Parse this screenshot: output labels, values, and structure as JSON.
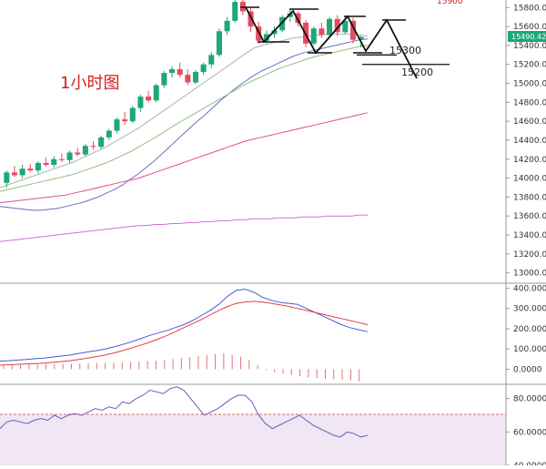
{
  "chart_data": [
    {
      "type": "candlestick",
      "panel": "price",
      "timeframe_label": "1小时图",
      "current_price_label": "15490.42",
      "y_ticks": [
        13000,
        13200,
        13400,
        13600,
        13800,
        14000,
        14200,
        14400,
        14600,
        14800,
        15000,
        15200,
        15400,
        15600,
        15800
      ],
      "ylim": [
        12900,
        15880
      ],
      "top_partial_label": "15900",
      "up_color": "#1fa67a",
      "down_color": "#e84a5f",
      "candles": [
        [
          13950,
          14080,
          13900,
          14060
        ],
        [
          14060,
          14130,
          14010,
          14030
        ],
        [
          14030,
          14140,
          14000,
          14100
        ],
        [
          14100,
          14150,
          14060,
          14080
        ],
        [
          14080,
          14180,
          14050,
          14160
        ],
        [
          14160,
          14220,
          14120,
          14140
        ],
        [
          14140,
          14230,
          14110,
          14200
        ],
        [
          14200,
          14260,
          14170,
          14190
        ],
        [
          14190,
          14290,
          14160,
          14270
        ],
        [
          14270,
          14320,
          14230,
          14250
        ],
        [
          14250,
          14360,
          14230,
          14340
        ],
        [
          14340,
          14390,
          14300,
          14330
        ],
        [
          14330,
          14450,
          14310,
          14430
        ],
        [
          14430,
          14520,
          14400,
          14500
        ],
        [
          14500,
          14640,
          14470,
          14620
        ],
        [
          14620,
          14700,
          14560,
          14600
        ],
        [
          14600,
          14760,
          14580,
          14740
        ],
        [
          14740,
          14880,
          14700,
          14860
        ],
        [
          14860,
          14920,
          14800,
          14820
        ],
        [
          14820,
          15000,
          14800,
          14980
        ],
        [
          14980,
          15130,
          14950,
          15110
        ],
        [
          15110,
          15180,
          15060,
          15150
        ],
        [
          15150,
          15220,
          15060,
          15090
        ],
        [
          15090,
          15150,
          14980,
          15010
        ],
        [
          15010,
          15140,
          14990,
          15120
        ],
        [
          15120,
          15220,
          15090,
          15200
        ],
        [
          15200,
          15330,
          15160,
          15300
        ],
        [
          15300,
          15580,
          15280,
          15550
        ],
        [
          15550,
          15700,
          15510,
          15660
        ],
        [
          15660,
          15880,
          15640,
          15860
        ],
        [
          15860,
          15900,
          15720,
          15760
        ],
        [
          15760,
          15800,
          15540,
          15600
        ],
        [
          15600,
          15650,
          15420,
          15450
        ],
        [
          15450,
          15560,
          15420,
          15520
        ],
        [
          15520,
          15600,
          15480,
          15560
        ],
        [
          15560,
          15720,
          15540,
          15700
        ],
        [
          15700,
          15780,
          15650,
          15740
        ],
        [
          15740,
          15760,
          15600,
          15640
        ],
        [
          15640,
          15670,
          15380,
          15420
        ],
        [
          15420,
          15600,
          15400,
          15580
        ],
        [
          15580,
          15640,
          15480,
          15510
        ],
        [
          15510,
          15700,
          15490,
          15680
        ],
        [
          15680,
          15720,
          15500,
          15540
        ],
        [
          15540,
          15700,
          15520,
          15660
        ],
        [
          15660,
          15690,
          15420,
          15460
        ],
        [
          15460,
          15500,
          15380,
          15490
        ]
      ],
      "moving_averages": [
        {
          "color": "#6b6fc4",
          "values": [
            13700,
            13690,
            13680,
            13670,
            13660,
            13660,
            13670,
            13680,
            13700,
            13720,
            13740,
            13770,
            13800,
            13840,
            13880,
            13930,
            13990,
            14050,
            14120,
            14190,
            14270,
            14350,
            14430,
            14510,
            14590,
            14660,
            14740,
            14820,
            14890,
            14960,
            15020,
            15080,
            15130,
            15170,
            15210,
            15250,
            15290,
            15320,
            15340,
            15360,
            15380,
            15400,
            15420,
            15440,
            15460,
            15470
          ]
        },
        {
          "color": "#8fbf7f",
          "values": [
            13860,
            13880,
            13900,
            13920,
            13940,
            13960,
            13980,
            14000,
            14020,
            14040,
            14070,
            14100,
            14130,
            14160,
            14200,
            14240,
            14280,
            14330,
            14380,
            14430,
            14480,
            14540,
            14590,
            14640,
            14690,
            14740,
            14790,
            14840,
            14890,
            14940,
            14990,
            15030,
            15070,
            15110,
            15150,
            15180,
            15210,
            15240,
            15270,
            15290,
            15310,
            15330,
            15350,
            15370,
            15390,
            15400
          ]
        },
        {
          "color": "#e04f8c",
          "values": [
            13740,
            13750,
            13760,
            13770,
            13780,
            13790,
            13800,
            13810,
            13820,
            13840,
            13860,
            13880,
            13900,
            13920,
            13940,
            13960,
            13980,
            14000,
            14030,
            14060,
            14090,
            14120,
            14150,
            14180,
            14210,
            14240,
            14270,
            14300,
            14330,
            14360,
            14390,
            14410,
            14430,
            14450,
            14470,
            14490,
            14510,
            14530,
            14550,
            14570,
            14590,
            14610,
            14630,
            14650,
            14670,
            14690
          ]
        },
        {
          "color": "#d070d0",
          "values": [
            13330,
            13340,
            13350,
            13360,
            13370,
            13380,
            13390,
            13400,
            13410,
            13420,
            13430,
            13440,
            13450,
            13460,
            13470,
            13480,
            13490,
            13500,
            13500,
            13510,
            13510,
            13520,
            13520,
            13530,
            13530,
            13540,
            13540,
            13550,
            13550,
            13560,
            13560,
            13570,
            13570,
            13570,
            13580,
            13580,
            13580,
            13590,
            13590,
            13590,
            13600,
            13600,
            13600,
            13600,
            13610,
            13610
          ]
        },
        {
          "color": "#b0b0b0",
          "values": [
            13900,
            13930,
            13960,
            13990,
            14020,
            14050,
            14080,
            14110,
            14140,
            14170,
            14210,
            14250,
            14290,
            14330,
            14380,
            14430,
            14480,
            14530,
            14590,
            14650,
            14710,
            14770,
            14830,
            14890,
            14950,
            15010,
            15070,
            15130,
            15190,
            15250,
            15310,
            15370,
            15400,
            15420,
            15440,
            15460,
            15480,
            15490,
            15500,
            15510,
            15520,
            15520,
            15520,
            15520,
            15510,
            15500
          ]
        }
      ],
      "annotations": [
        {
          "text": "15300",
          "value": 15300
        },
        {
          "text": "15200",
          "value": 15200
        }
      ]
    },
    {
      "type": "line",
      "panel": "macd",
      "y_ticks": [
        0,
        100,
        200,
        300,
        400
      ],
      "y_tick_labels": [
        "0.0000",
        "100.0000",
        "200.0000",
        "300.0000",
        "400.0000"
      ],
      "ylim": [
        -70,
        420
      ],
      "series": [
        {
          "color": "#4b5bd1",
          "values": [
            40,
            42,
            45,
            48,
            52,
            55,
            60,
            65,
            70,
            78,
            85,
            92,
            100,
            110,
            122,
            135,
            150,
            165,
            178,
            190,
            205,
            220,
            240,
            265,
            290,
            320,
            360,
            390,
            395,
            380,
            355,
            340,
            330,
            325,
            320,
            300,
            280,
            260,
            240,
            220,
            205,
            195,
            185
          ]
        },
        {
          "color": "#e04040",
          "values": [
            20,
            22,
            24,
            26,
            28,
            30,
            34,
            38,
            42,
            48,
            55,
            62,
            70,
            80,
            92,
            105,
            118,
            132,
            148,
            165,
            185,
            205,
            225,
            245,
            268,
            290,
            310,
            325,
            332,
            335,
            332,
            325,
            318,
            310,
            300,
            290,
            280,
            270,
            260,
            250,
            240,
            230,
            220
          ]
        }
      ],
      "histogram": [
        18,
        20,
        21,
        22,
        23,
        24,
        25,
        26,
        27,
        28,
        29,
        30,
        30,
        32,
        34,
        36,
        38,
        40,
        42,
        45,
        50,
        55,
        60,
        65,
        70,
        75,
        78,
        70,
        62,
        45,
        20,
        -5,
        -15,
        -22,
        -28,
        -35,
        -40,
        -45,
        -48,
        -50,
        -52,
        -55,
        -60
      ]
    },
    {
      "type": "line",
      "panel": "rsi",
      "y_ticks": [
        40,
        60,
        80
      ],
      "y_tick_labels": [
        "40.0000",
        "60.0000",
        "80.0000"
      ],
      "ylim": [
        40,
        88
      ],
      "overbought": 70,
      "series": [
        {
          "color": "#6b5bb8",
          "values": [
            62,
            66,
            67,
            66,
            65,
            67,
            68,
            67,
            70,
            68,
            70,
            71,
            70,
            72,
            74,
            73,
            75,
            74,
            78,
            77,
            80,
            82,
            85,
            84,
            83,
            86,
            87,
            85,
            80,
            75,
            70,
            72,
            74,
            77,
            80,
            82,
            82,
            78,
            70,
            65,
            62,
            64,
            66,
            68,
            70,
            67,
            64,
            62,
            60,
            58,
            57,
            60,
            59,
            57,
            58
          ]
        }
      ]
    }
  ],
  "axis_tag": "15490.42"
}
